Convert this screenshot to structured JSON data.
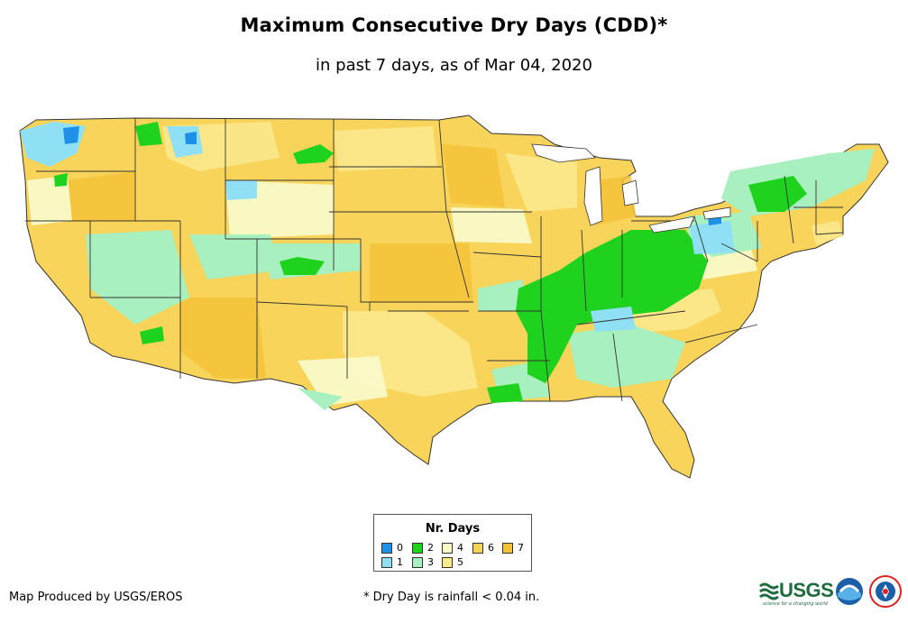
{
  "header": {
    "title": "Maximum Consecutive Dry Days (CDD)*",
    "subtitle": "in past 7 days, as of Mar 04, 2020"
  },
  "legend": {
    "title": "Nr. Days",
    "items": [
      {
        "label": "0",
        "color": "#1e90e8"
      },
      {
        "label": "1",
        "color": "#8fe0f5"
      },
      {
        "label": "2",
        "color": "#1ed21e"
      },
      {
        "label": "3",
        "color": "#a8f0c0"
      },
      {
        "label": "4",
        "color": "#fafac8"
      },
      {
        "label": "5",
        "color": "#fbe98c"
      },
      {
        "label": "6",
        "color": "#f8d45a"
      },
      {
        "label": "7",
        "color": "#f5c238"
      }
    ]
  },
  "footer": {
    "credit": "Map Produced by USGS/EROS",
    "footnote": "* Dry Day is rainfall < 0.04 in.",
    "usgs_text": "USGS",
    "usgs_tagline": "science for a changing world",
    "logo_icons": [
      "usgs-logo",
      "noaa-logo",
      "national-weather-service-logo"
    ]
  }
}
